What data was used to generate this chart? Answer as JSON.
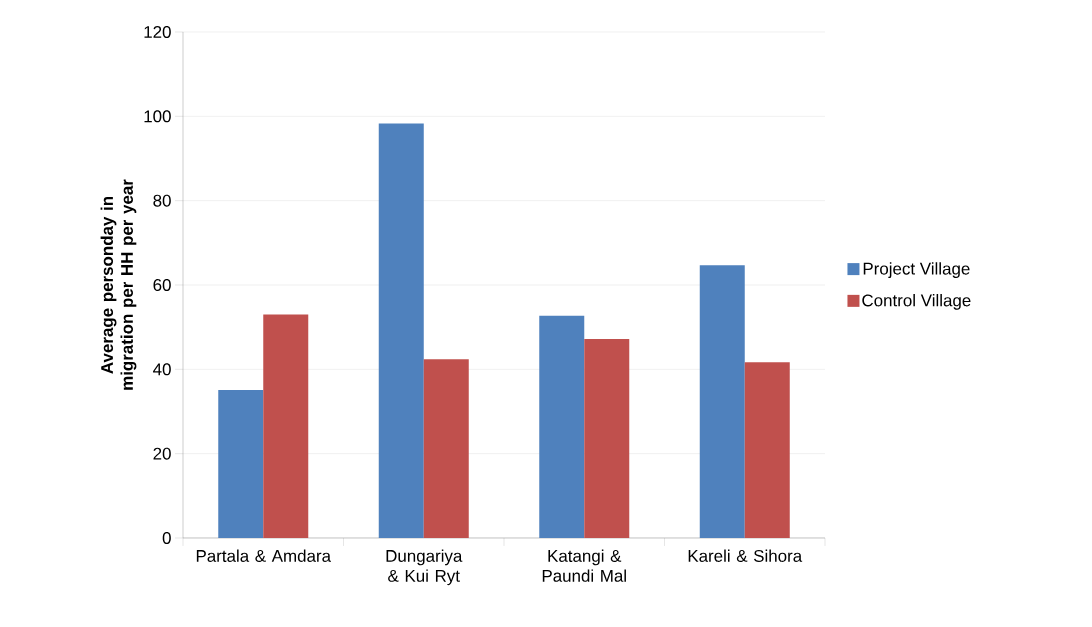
{
  "chart_data": {
    "type": "bar",
    "ylabel": "Average personday in migration per HH per year",
    "categories": [
      "Partala & Amdara",
      "Dungariya & Kui Ryt",
      "Katangi & Paundi Mal",
      "Kareli & Sihora"
    ],
    "series": [
      {
        "name": "Project Village",
        "color": "#4f81bd",
        "values": [
          35.1,
          98.3,
          52.7,
          64.7
        ]
      },
      {
        "name": "Control Village",
        "color": "#c0504d",
        "values": [
          53.0,
          42.4,
          47.2,
          41.7
        ]
      }
    ],
    "ylim": [
      0,
      120
    ],
    "yticks": [
      0,
      20,
      40,
      60,
      80,
      100,
      120
    ],
    "grid": "y",
    "legend": "right"
  }
}
